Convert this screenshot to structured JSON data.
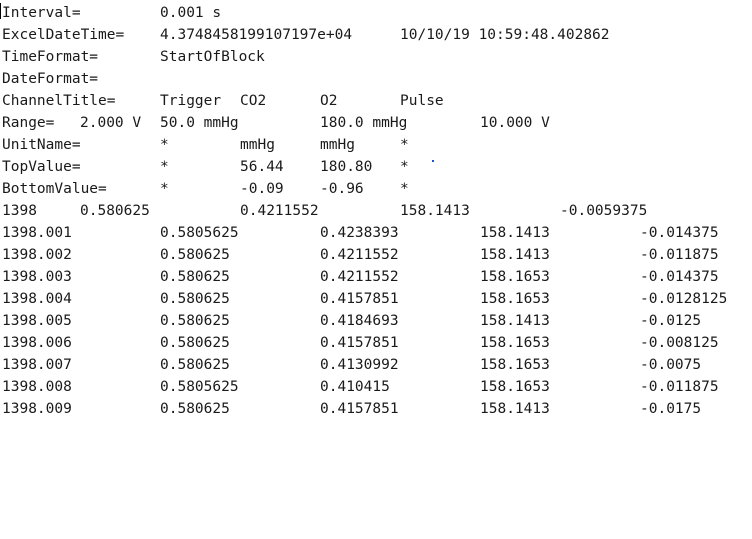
{
  "header": {
    "interval": {
      "key": "Interval=",
      "value": "0.001 s"
    },
    "excel_date_time": {
      "key": "ExcelDateTime=",
      "value": "4.3748458199107197e+04",
      "date": "10/10/19 10:59:48.402862"
    },
    "time_format": {
      "key": "TimeFormat=",
      "value": "StartOfBlock"
    },
    "date_format": {
      "key": "DateFormat="
    },
    "channel_title": {
      "key": "ChannelTitle=",
      "values": [
        "Trigger",
        "CO2",
        "O2",
        "Pulse"
      ]
    },
    "range": {
      "key": "Range=",
      "values": [
        "2.000 V",
        "50.0 mmHg",
        "180.0 mmHg",
        "10.000 V"
      ]
    },
    "unit_name": {
      "key": "UnitName=",
      "values": [
        "*",
        "mmHg",
        "mmHg",
        "*"
      ]
    },
    "top_value": {
      "key": "TopValue=",
      "values": [
        "*",
        "56.44",
        "180.80",
        "*"
      ]
    },
    "bottom_value": {
      "key": "BottomValue=",
      "values": [
        "*",
        "-0.09",
        "-0.96",
        "*"
      ]
    }
  },
  "first_row": [
    "1398",
    "0.580625",
    "0.4211552",
    "158.1413",
    "-0.0059375"
  ],
  "rows": [
    [
      "1398.001",
      "0.5805625",
      "0.4238393",
      "158.1413",
      "-0.014375"
    ],
    [
      "1398.002",
      "0.580625",
      "0.4211552",
      "158.1413",
      "-0.011875"
    ],
    [
      "1398.003",
      "0.580625",
      "0.4211552",
      "158.1653",
      "-0.014375"
    ],
    [
      "1398.004",
      "0.580625",
      "0.4157851",
      "158.1653",
      "-0.0128125"
    ],
    [
      "1398.005",
      "0.580625",
      "0.4184693",
      "158.1413",
      "-0.0125"
    ],
    [
      "1398.006",
      "0.580625",
      "0.4157851",
      "158.1653",
      "-0.008125"
    ],
    [
      "1398.007",
      "0.580625",
      "0.4130992",
      "158.1653",
      "-0.0075"
    ],
    [
      "1398.008",
      "0.5805625",
      "0.410415",
      "158.1653",
      "-0.011875"
    ],
    [
      "1398.009",
      "0.580625",
      "0.4157851",
      "158.1413",
      "-0.0175"
    ]
  ]
}
